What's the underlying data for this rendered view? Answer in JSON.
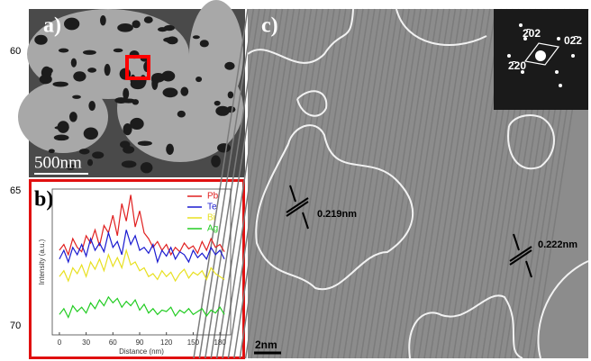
{
  "margin_labels": [
    "60",
    "65",
    "70"
  ],
  "panel_a": {
    "label": "a)",
    "scale_bar": "500nm"
  },
  "panel_c": {
    "label": "c)",
    "fft_labels": [
      "2̄02",
      "02̄2",
      "2̄20"
    ],
    "spacings": [
      "0.219nm",
      "0.222nm"
    ],
    "scale_bar": "2nm"
  },
  "chart_data": {
    "type": "line",
    "label": "b)",
    "x_label": "Distance (nm)",
    "y_label": "Intensity (a.u.)",
    "x": [
      0,
      5,
      10,
      15,
      20,
      25,
      30,
      35,
      40,
      45,
      50,
      55,
      60,
      65,
      70,
      75,
      80,
      85,
      90,
      95,
      100,
      105,
      110,
      115,
      120,
      125,
      130,
      135,
      140,
      145,
      150,
      155,
      160,
      165,
      170,
      175,
      180,
      185
    ],
    "xlim": [
      -8,
      192
    ],
    "xticks": [
      0,
      30,
      60,
      90,
      120,
      150,
      180
    ],
    "ylim": [
      0,
      100
    ],
    "legend": "upper right",
    "series": [
      {
        "name": "Pb",
        "color": "#e02020",
        "values": [
          58,
          62,
          55,
          66,
          60,
          57,
          68,
          63,
          72,
          61,
          75,
          70,
          82,
          68,
          90,
          78,
          96,
          74,
          85,
          70,
          66,
          60,
          64,
          58,
          62,
          55,
          60,
          57,
          63,
          59,
          61,
          56,
          64,
          58,
          66,
          60,
          62,
          57
        ]
      },
      {
        "name": "Te",
        "color": "#1a1ad0",
        "values": [
          52,
          58,
          50,
          60,
          55,
          62,
          54,
          66,
          58,
          63,
          57,
          70,
          60,
          64,
          55,
          72,
          62,
          68,
          58,
          60,
          56,
          62,
          50,
          58,
          54,
          60,
          52,
          57,
          55,
          50,
          58,
          53,
          56,
          52,
          60,
          55,
          58,
          52
        ]
      },
      {
        "name": "Bi",
        "color": "#e8e020",
        "values": [
          40,
          44,
          37,
          46,
          42,
          48,
          40,
          50,
          45,
          52,
          44,
          55,
          47,
          53,
          46,
          58,
          48,
          50,
          44,
          46,
          40,
          42,
          38,
          44,
          40,
          43,
          37,
          42,
          45,
          39,
          43,
          41,
          44,
          38,
          46,
          42,
          40,
          38
        ]
      },
      {
        "name": "Ag",
        "color": "#22cc22",
        "values": [
          14,
          18,
          12,
          20,
          16,
          19,
          15,
          22,
          18,
          24,
          20,
          26,
          22,
          25,
          19,
          23,
          20,
          24,
          17,
          21,
          15,
          18,
          14,
          17,
          16,
          19,
          13,
          17,
          15,
          18,
          14,
          16,
          18,
          13,
          17,
          15,
          19,
          14
        ]
      }
    ]
  }
}
